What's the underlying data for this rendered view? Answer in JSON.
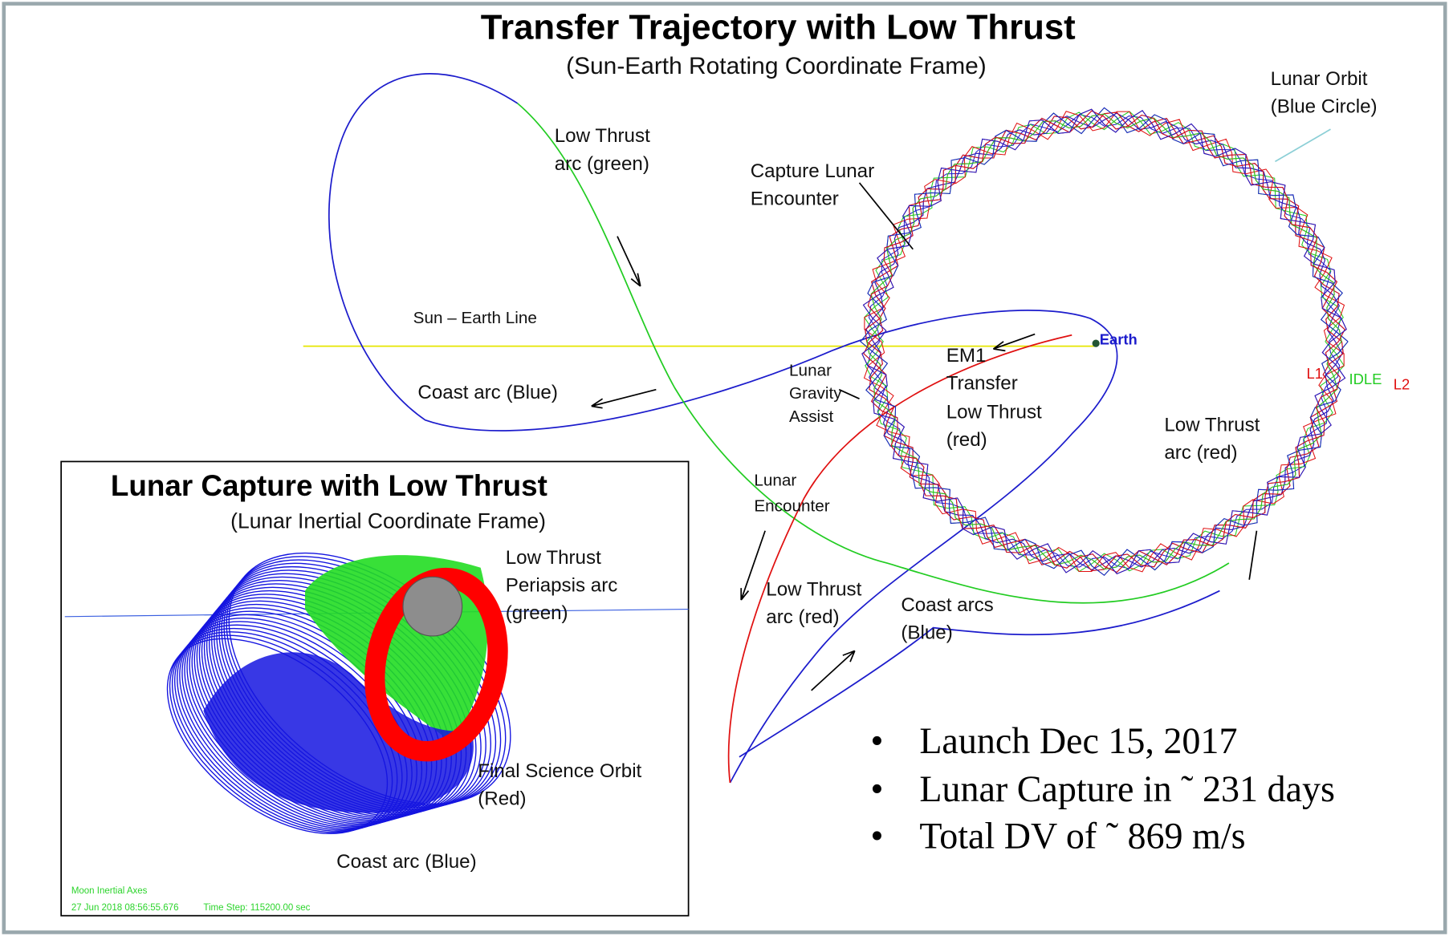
{
  "header": {
    "title": "Transfer Trajectory with Low Thrust",
    "subtitle": "(Sun-Earth Rotating Coordinate Frame)"
  },
  "annotations": [
    {
      "lines": [
        "Lunar Orbit",
        "(Blue Circle)"
      ]
    },
    {
      "lines": [
        "Low Thrust",
        "arc (green)"
      ]
    },
    {
      "lines": [
        "Capture Lunar",
        "Encounter"
      ]
    },
    {
      "lines": [
        "Sun – Earth Line"
      ]
    },
    {
      "lines": [
        "Earth"
      ]
    },
    {
      "lines": [
        "EM1",
        "Transfer",
        "Low Thrust",
        "(red)"
      ]
    },
    {
      "lines": [
        "Coast arc (Blue)"
      ]
    },
    {
      "lines": [
        "Lunar",
        "Gravity",
        "Assist"
      ]
    },
    {
      "lines": [
        "Low Thrust",
        "arc (red)"
      ]
    },
    {
      "lines": [
        "Lunar",
        "Encounter"
      ]
    },
    {
      "lines": [
        "Low Thrust",
        "arc (red)"
      ]
    },
    {
      "lines": [
        "Coast arcs",
        "(Blue)"
      ]
    },
    {
      "lines": [
        "L1"
      ]
    },
    {
      "lines": [
        "IDLE"
      ]
    },
    {
      "lines": [
        "L2"
      ]
    }
  ],
  "inset": {
    "title": "Lunar Capture with Low Thrust",
    "subtitle": "(Lunar Inertial Coordinate Frame)",
    "annotations": [
      {
        "lines": [
          "Low Thrust",
          "Periapsis arc",
          "(green)"
        ]
      },
      {
        "lines": [
          "Final Science Orbit",
          "(Red)"
        ]
      },
      {
        "lines": [
          "Coast arc (Blue)"
        ]
      }
    ],
    "footer": {
      "axes": "Moon Inertial Axes",
      "timestamp": "27 Jun 2018 08:56:55.676",
      "time_step": "Time Step: 115200.00 sec"
    }
  },
  "bullets": [
    "Launch Dec 15, 2017",
    "Lunar Capture in ˜ 231 days",
    "Total DV of ˜ 869  m/s"
  ]
}
